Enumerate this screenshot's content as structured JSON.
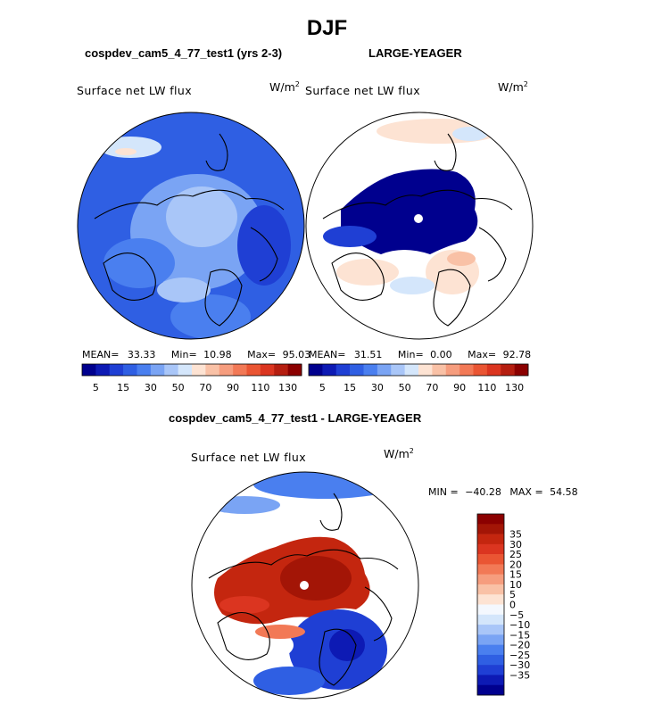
{
  "figure": {
    "season": "DJF",
    "variable": "Surface net LW flux",
    "units_base": "W/m",
    "units_exp": "2"
  },
  "colors": {
    "background": "#ffffff",
    "land_outline": "#000000",
    "abs_scale": [
      "#00008e",
      "#0d1ab4",
      "#1f3fd4",
      "#2f5fe3",
      "#4a7fef",
      "#7aa4f4",
      "#a9c6f8",
      "#d4e6fb",
      "#fde3d3",
      "#f9c1a6",
      "#f69d7e",
      "#f27956",
      "#ea5533",
      "#db3520",
      "#b51e10",
      "#8b0000"
    ],
    "diff_scale": [
      "#00008e",
      "#0d1ab4",
      "#1f3fd4",
      "#2f5fe3",
      "#4a7fef",
      "#7aa4f4",
      "#a9c6f8",
      "#d4e6fb",
      "#f4f8fe",
      "#fde3d3",
      "#f9c1a6",
      "#f69d7e",
      "#f27956",
      "#ea5533",
      "#db3520",
      "#c4260f",
      "#a31506",
      "#8b0000"
    ]
  },
  "panels": {
    "model": {
      "title": "cospdev_cam5_4_77_test1 (yrs 2-3)",
      "mean_label": "MEAN=",
      "mean": "33.33",
      "min_label": "Min=",
      "min": "10.98",
      "max_label": "Max=",
      "max": "95.03"
    },
    "obs": {
      "title": "LARGE-YEAGER",
      "mean_label": "MEAN=",
      "mean": "31.51",
      "min_label": "Min=",
      "min": "0.00",
      "max_label": "Max=",
      "max": "92.78"
    },
    "diff": {
      "title": "cospdev_cam5_4_77_test1 - LARGE-YEAGER",
      "min_label": "MIN =",
      "min": "−40.28",
      "max_label": "MAX =",
      "max": "54.58"
    }
  },
  "chart_data": [
    {
      "type": "heatmap",
      "title": "cospdev_cam5_4_77_test1 (yrs 2-3)",
      "projection": "north polar stereographic",
      "variable": "Surface net LW flux",
      "units": "W/m2",
      "stats": {
        "mean": 33.33,
        "min": 10.98,
        "max": 95.03
      },
      "contour_levels": [
        5,
        10,
        15,
        20,
        30,
        40,
        50,
        60,
        70,
        80,
        90,
        100,
        110,
        120,
        130
      ],
      "colorbar_tick_labels": [
        "5",
        "15",
        "30",
        "50",
        "70",
        "90",
        "110",
        "130"
      ]
    },
    {
      "type": "heatmap",
      "title": "LARGE-YEAGER",
      "projection": "north polar stereographic",
      "variable": "Surface net LW flux",
      "units": "W/m2",
      "stats": {
        "mean": 31.51,
        "min": 0.0,
        "max": 92.78
      },
      "contour_levels": [
        5,
        10,
        15,
        20,
        30,
        40,
        50,
        60,
        70,
        80,
        90,
        100,
        110,
        120,
        130
      ],
      "colorbar_tick_labels": [
        "5",
        "15",
        "30",
        "50",
        "70",
        "90",
        "110",
        "130"
      ]
    },
    {
      "type": "heatmap",
      "title": "cospdev_cam5_4_77_test1 - LARGE-YEAGER",
      "projection": "north polar stereographic",
      "variable": "Surface net LW flux",
      "units": "W/m2",
      "stats": {
        "min": -40.28,
        "max": 54.58
      },
      "contour_levels": [
        -35,
        -30,
        -25,
        -20,
        -15,
        -10,
        -5,
        0,
        5,
        10,
        15,
        20,
        25,
        30,
        35
      ],
      "colorbar_tick_labels": [
        "35",
        "30",
        "25",
        "20",
        "15",
        "10",
        "5",
        "0",
        "−5",
        "−10",
        "−15",
        "−20",
        "−25",
        "−30",
        "−35"
      ]
    }
  ]
}
